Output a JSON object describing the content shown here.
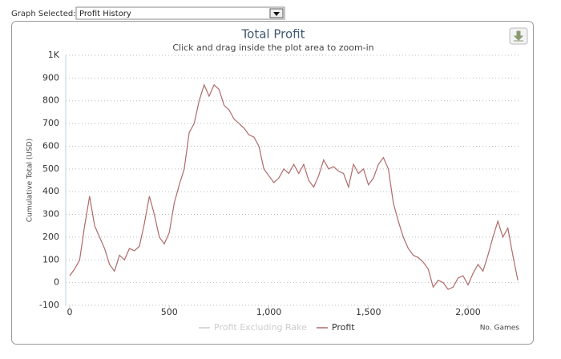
{
  "ui": {
    "label": "Graph Selected:",
    "selected": "Profit History"
  },
  "chart_data": {
    "type": "line",
    "title": "Total Profit",
    "subtitle": "Click and drag inside the plot area to zoom-in",
    "y_label": "Cumulative Total (USD)",
    "x_label": "No. Games",
    "xlim": [
      -20,
      2260
    ],
    "xticks": [
      0,
      500,
      {
        "value": 1000,
        "label": "1,000"
      },
      {
        "value": 1500,
        "label": "1,500"
      },
      {
        "value": 2000,
        "label": "2,000"
      }
    ],
    "ylim": [
      -100,
      1000
    ],
    "yticks": [
      -100,
      0,
      100,
      200,
      300,
      400,
      500,
      600,
      700,
      800,
      900,
      {
        "value": 1000,
        "label": "1K"
      }
    ],
    "grid": true,
    "x": [
      0,
      25,
      50,
      75,
      100,
      125,
      150,
      175,
      200,
      225,
      250,
      275,
      300,
      325,
      350,
      375,
      400,
      425,
      450,
      475,
      500,
      525,
      550,
      575,
      600,
      625,
      650,
      675,
      700,
      725,
      750,
      775,
      800,
      825,
      850,
      875,
      900,
      925,
      950,
      975,
      1000,
      1025,
      1050,
      1075,
      1100,
      1125,
      1150,
      1175,
      1200,
      1225,
      1250,
      1275,
      1300,
      1325,
      1350,
      1375,
      1400,
      1425,
      1450,
      1475,
      1500,
      1525,
      1550,
      1575,
      1600,
      1625,
      1650,
      1675,
      1700,
      1725,
      1750,
      1775,
      1800,
      1825,
      1850,
      1875,
      1900,
      1925,
      1950,
      1975,
      2000,
      2025,
      2050,
      2075,
      2100,
      2125,
      2150,
      2175,
      2200,
      2225,
      2250
    ],
    "series": [
      {
        "name": "Profit Excluding Rake",
        "color": "#cccccc",
        "visible": false
      },
      {
        "name": "Profit",
        "color": "#b06a6a",
        "visible": true,
        "values": [
          30,
          60,
          100,
          250,
          380,
          250,
          200,
          150,
          80,
          50,
          120,
          100,
          150,
          140,
          160,
          260,
          380,
          300,
          200,
          170,
          220,
          350,
          430,
          500,
          660,
          700,
          800,
          870,
          820,
          870,
          850,
          780,
          760,
          720,
          700,
          680,
          650,
          640,
          600,
          500,
          470,
          440,
          460,
          500,
          480,
          520,
          480,
          520,
          450,
          420,
          470,
          540,
          500,
          510,
          490,
          480,
          420,
          520,
          480,
          500,
          430,
          460,
          520,
          550,
          500,
          350,
          270,
          200,
          150,
          120,
          110,
          90,
          60,
          -20,
          10,
          0,
          -30,
          -20,
          20,
          30,
          -10,
          40,
          80,
          50,
          120,
          200,
          270,
          200,
          240,
          120,
          10
        ]
      }
    ]
  }
}
